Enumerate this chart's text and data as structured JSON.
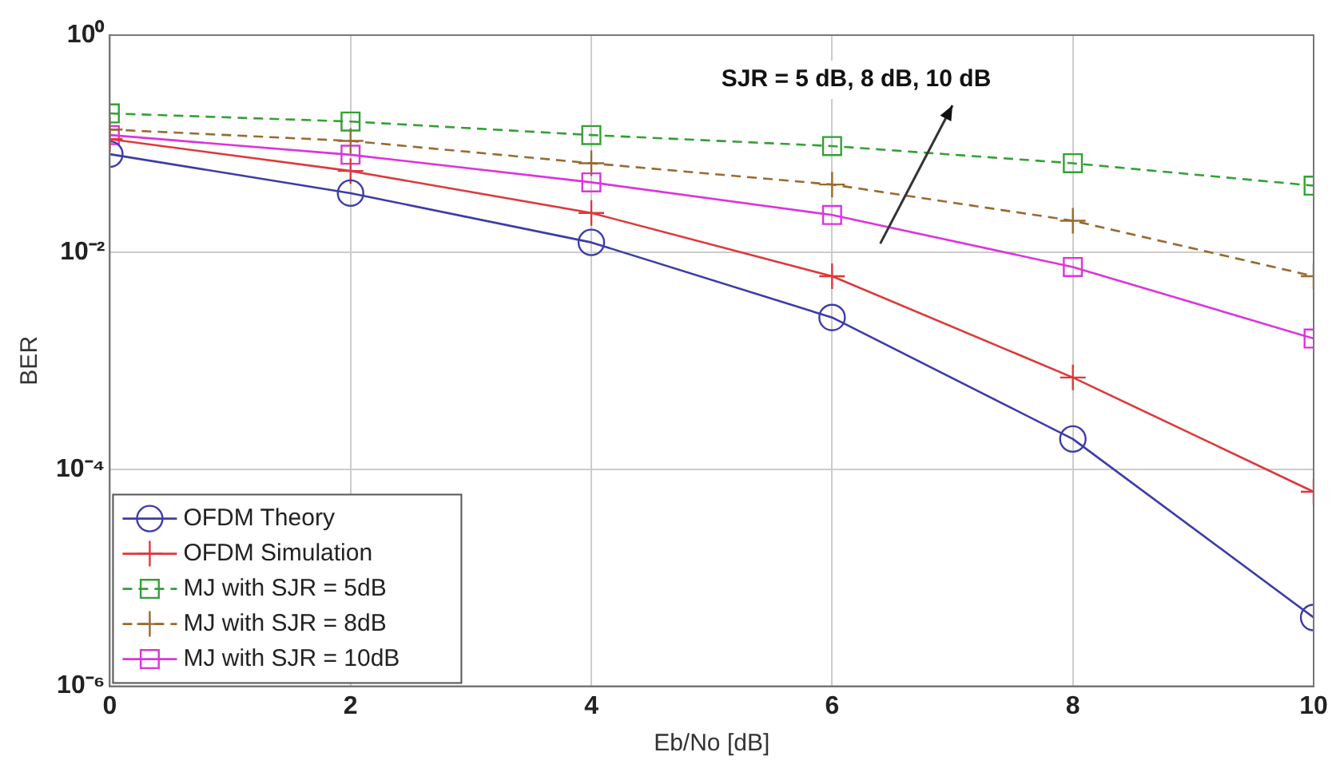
{
  "chart_data": {
    "type": "line",
    "xlabel": "Eb/No [dB]",
    "ylabel": "BER",
    "x": [
      0,
      2,
      4,
      6,
      8,
      10
    ],
    "xlim": [
      0,
      10
    ],
    "xticks": [
      0,
      2,
      4,
      6,
      8,
      10
    ],
    "log": "y",
    "ylim": [
      1e-06,
      1
    ],
    "yticks": [
      {
        "value": 1,
        "label": "10⁰"
      },
      {
        "value": 0.01,
        "label": "10⁻²"
      },
      {
        "value": 0.0001,
        "label": "10⁻⁴"
      },
      {
        "value": 1e-06,
        "label": "10⁻⁶"
      }
    ],
    "grid": true,
    "legend": "bottom left",
    "annotations": [
      "SJR = 5 dB, 8 dB, 10 dB"
    ],
    "series": [
      {
        "name": "OFDM Theory",
        "color": "#3c3caa",
        "marker": "circle",
        "line_style": "solid",
        "values": [
          0.08,
          0.035,
          0.0123,
          0.0025,
          0.00019,
          4.3e-06
        ]
      },
      {
        "name": "OFDM Simulation",
        "color": "#dd3a3a",
        "marker": "cross",
        "line_style": "solid",
        "values": [
          0.11,
          0.056,
          0.023,
          0.006,
          0.0007,
          6.2e-05
        ]
      },
      {
        "name": "MJ with SJR = 5dB",
        "color": "#33a033",
        "marker": "square",
        "line_style": "dashed",
        "values": [
          0.19,
          0.16,
          0.12,
          0.095,
          0.066,
          0.041
        ]
      },
      {
        "name": "MJ with SJR = 8dB",
        "color": "#9a6a30",
        "marker": "cross",
        "line_style": "dashed",
        "values": [
          0.135,
          0.106,
          0.066,
          0.042,
          0.0195,
          0.006
        ]
      },
      {
        "name": "MJ with SJR = 10dB",
        "color": "#dd33dd",
        "marker": "square",
        "line_style": "solid",
        "values": [
          0.12,
          0.079,
          0.044,
          0.022,
          0.0073,
          0.0016
        ]
      }
    ]
  }
}
